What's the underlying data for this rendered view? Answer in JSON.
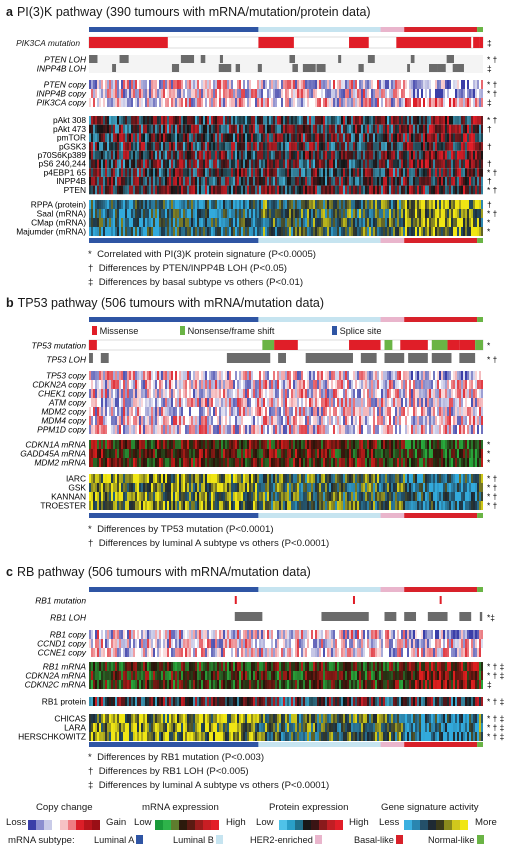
{
  "colors": {
    "luminal_a": "#2f55a4",
    "luminal_b": "#c6e4f0",
    "her2": "#e9b5cc",
    "basal": "#d8212a",
    "normal": "#6ab445",
    "mutation_red": "#e01e28",
    "loh_gray": "#6b6b6b"
  },
  "panel_a": {
    "letter": "a",
    "title": "PI(3)K pathway (390 tumours with mRNA/mutation/protein data)",
    "rows": {
      "mutation": {
        "label": "PIK3CA mutation",
        "marks": "‡"
      },
      "loh": [
        {
          "label": "PTEN LOH",
          "marks": "* †"
        },
        {
          "label": "INPP4B LOH",
          "marks": "‡"
        }
      ],
      "copy": [
        {
          "label": "PTEN copy",
          "marks": "* †"
        },
        {
          "label": "INPP4B copy",
          "marks": "* †"
        },
        {
          "label": "PIK3CA copy",
          "marks": "‡"
        }
      ],
      "protein": [
        {
          "label": "pAkt 308",
          "marks": "* †"
        },
        {
          "label": "pAkt 473",
          "marks": "†"
        },
        {
          "label": "pmTOR",
          "marks": ""
        },
        {
          "label": "pGSK3",
          "marks": "†"
        },
        {
          "label": "p70S6Kp389",
          "marks": ""
        },
        {
          "label": "pS6 240,244",
          "marks": "†"
        },
        {
          "label": "p4EBP1 65",
          "marks": "* †"
        },
        {
          "label": "INPP4B",
          "marks": "†"
        },
        {
          "label": "PTEN",
          "marks": "* †"
        }
      ],
      "signatures": [
        {
          "label": "RPPA (protein)",
          "marks": "†"
        },
        {
          "label": "Saal (mRNA)",
          "marks": "* †"
        },
        {
          "label": "CMap (mRNA)",
          "marks": "*"
        },
        {
          "label": "Majumder (mRNA)",
          "marks": "*"
        }
      ]
    },
    "notes": [
      {
        "sym": "*",
        "text": "Correlated with PI(3)K protein signature (P<0.0005)"
      },
      {
        "sym": "†",
        "text": "Differences by PTEN/INPP4B LOH (P<0.05)"
      },
      {
        "sym": "‡",
        "text": "Differences by basal subtype vs others (P<0.01)"
      }
    ]
  },
  "panel_b": {
    "letter": "b",
    "title": "TP53 pathway (506 tumours with mRNA/mutation data)",
    "mutation_legend": [
      {
        "label": "Missense",
        "color": "#e01e28"
      },
      {
        "label": "Nonsense/frame shift",
        "color": "#6ab445"
      },
      {
        "label": "Splice site",
        "color": "#2f55a4"
      }
    ],
    "rows": {
      "mutation": {
        "label": "TP53 mutation",
        "marks": "*"
      },
      "loh": {
        "label": "TP53 LOH",
        "marks": "* †"
      },
      "copy": [
        {
          "label": "TP53 copy",
          "marks": ""
        },
        {
          "label": "CDKN2A copy",
          "marks": ""
        },
        {
          "label": "CHEK1 copy",
          "marks": ""
        },
        {
          "label": "ATM copy",
          "marks": ""
        },
        {
          "label": "MDM2 copy",
          "marks": ""
        },
        {
          "label": "MDM4 copy",
          "marks": ""
        },
        {
          "label": "PPM1D copy",
          "marks": ""
        }
      ],
      "mrna": [
        {
          "label": "CDKN1A mRNA",
          "marks": "*"
        },
        {
          "label": "GADD45A mRNA",
          "marks": "*"
        },
        {
          "label": "MDM2 mRNA",
          "marks": "*"
        }
      ],
      "signatures": [
        {
          "label": "IARC",
          "marks": "* †"
        },
        {
          "label": "GSK",
          "marks": "* †"
        },
        {
          "label": "KANNAN",
          "marks": "* †"
        },
        {
          "label": "TROESTER",
          "marks": "* †"
        }
      ]
    },
    "notes": [
      {
        "sym": "*",
        "text": "Differences by TP53 mutation (P<0.0001)"
      },
      {
        "sym": "†",
        "text": "Differences by luminal A subtype vs others (P<0.0001)"
      }
    ]
  },
  "panel_c": {
    "letter": "c",
    "title": "RB pathway (506 tumours with mRNA/mutation data)",
    "rows": {
      "mutation": {
        "label": "RB1 mutation",
        "marks": ""
      },
      "loh": {
        "label": "RB1 LOH",
        "marks": "*‡"
      },
      "copy": [
        {
          "label": "RB1 copy",
          "marks": ""
        },
        {
          "label": "CCND1 copy",
          "marks": ""
        },
        {
          "label": "CCNE1 copy",
          "marks": ""
        }
      ],
      "mrna": [
        {
          "label": "RB1 mRNA",
          "marks": "* † ‡"
        },
        {
          "label": "CDKN2A mRNA",
          "marks": "* † ‡"
        },
        {
          "label": "CDKN2C mRNA",
          "marks": "‡"
        }
      ],
      "protein": {
        "label": "RB1 protein",
        "marks": "* † ‡"
      },
      "signatures": [
        {
          "label": "CHICAS",
          "marks": "* † ‡"
        },
        {
          "label": "LARA",
          "marks": "* † ‡"
        },
        {
          "label": "HERSCHKOWITZ",
          "marks": "* † ‡"
        }
      ]
    },
    "notes": [
      {
        "sym": "*",
        "text": "Differences by RB1 mutation (P<0.003)"
      },
      {
        "sym": "†",
        "text": "Differences by RB1 LOH (P<0.005)"
      },
      {
        "sym": "‡",
        "text": "Differences by luminal A subtype vs others (P<0.0001)"
      }
    ]
  },
  "legend": {
    "copy_change": {
      "title": "Copy change",
      "low": "Loss",
      "high": "Gain"
    },
    "mrna_expression": {
      "title": "mRNA expression",
      "low": "Low",
      "high": "High"
    },
    "protein_expression": {
      "title": "Protein expression",
      "low": "Low",
      "high": "High"
    },
    "gene_signature": {
      "title": "Gene signature activity",
      "low": "Less",
      "high": "More"
    },
    "subtype_title": "mRNA subtype:",
    "subtypes": [
      {
        "label": "Luminal A",
        "color": "#2f55a4"
      },
      {
        "label": "Luminal B",
        "color": "#c6e4f0"
      },
      {
        "label": "HER2-enriched",
        "color": "#e9b5cc"
      },
      {
        "label": "Basal-like",
        "color": "#d8212a"
      },
      {
        "label": "Normal-like",
        "color": "#6ab445"
      }
    ]
  }
}
